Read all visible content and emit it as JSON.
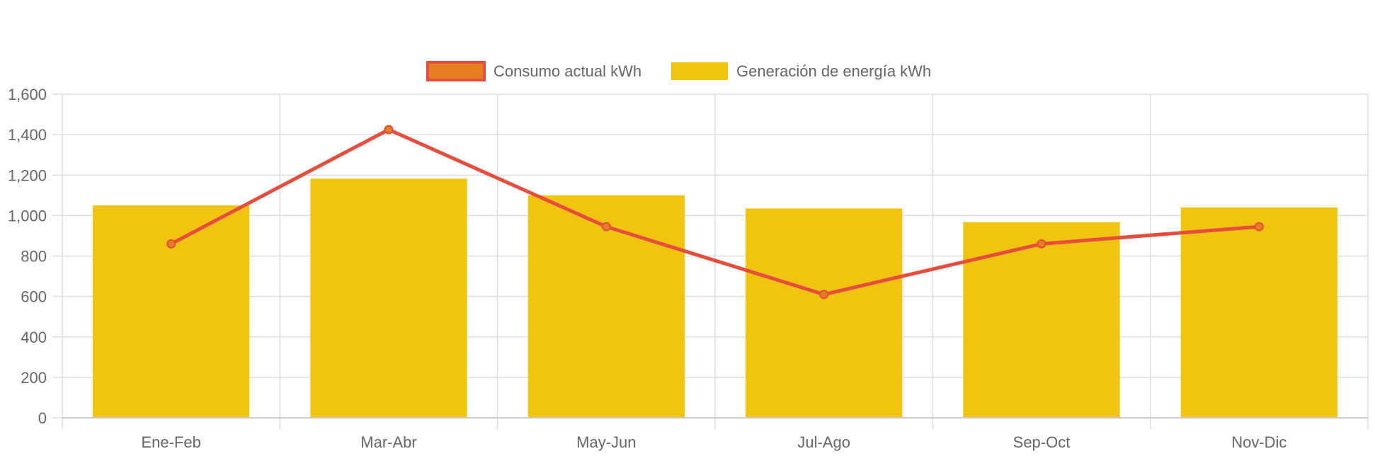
{
  "chart_data": {
    "type": "bar",
    "title": "",
    "xlabel": "",
    "ylabel": "",
    "categories": [
      "Ene-Feb",
      "Mar-Abr",
      "May-Jun",
      "Jul-Ago",
      "Sep-Oct",
      "Nov-Dic"
    ],
    "ylim": [
      0,
      1600
    ],
    "yticks": [
      0,
      200,
      400,
      600,
      800,
      1000,
      1200,
      1400,
      1600
    ],
    "ytick_labels": [
      "0",
      "200",
      "400",
      "600",
      "800",
      "1,000",
      "1,200",
      "1,400",
      "1,600"
    ],
    "grid": true,
    "legend_position": "top-center",
    "series": [
      {
        "name": "Consumo actual kWh",
        "type": "line",
        "values": [
          860,
          1425,
          945,
          610,
          860,
          945
        ],
        "color": "#e74c3c",
        "point_color": "#e67e22"
      },
      {
        "name": "Generación de energía kWh",
        "type": "bar",
        "values": [
          1050,
          1182,
          1100,
          1035,
          967,
          1040
        ],
        "color": "#f1c40f"
      }
    ]
  }
}
